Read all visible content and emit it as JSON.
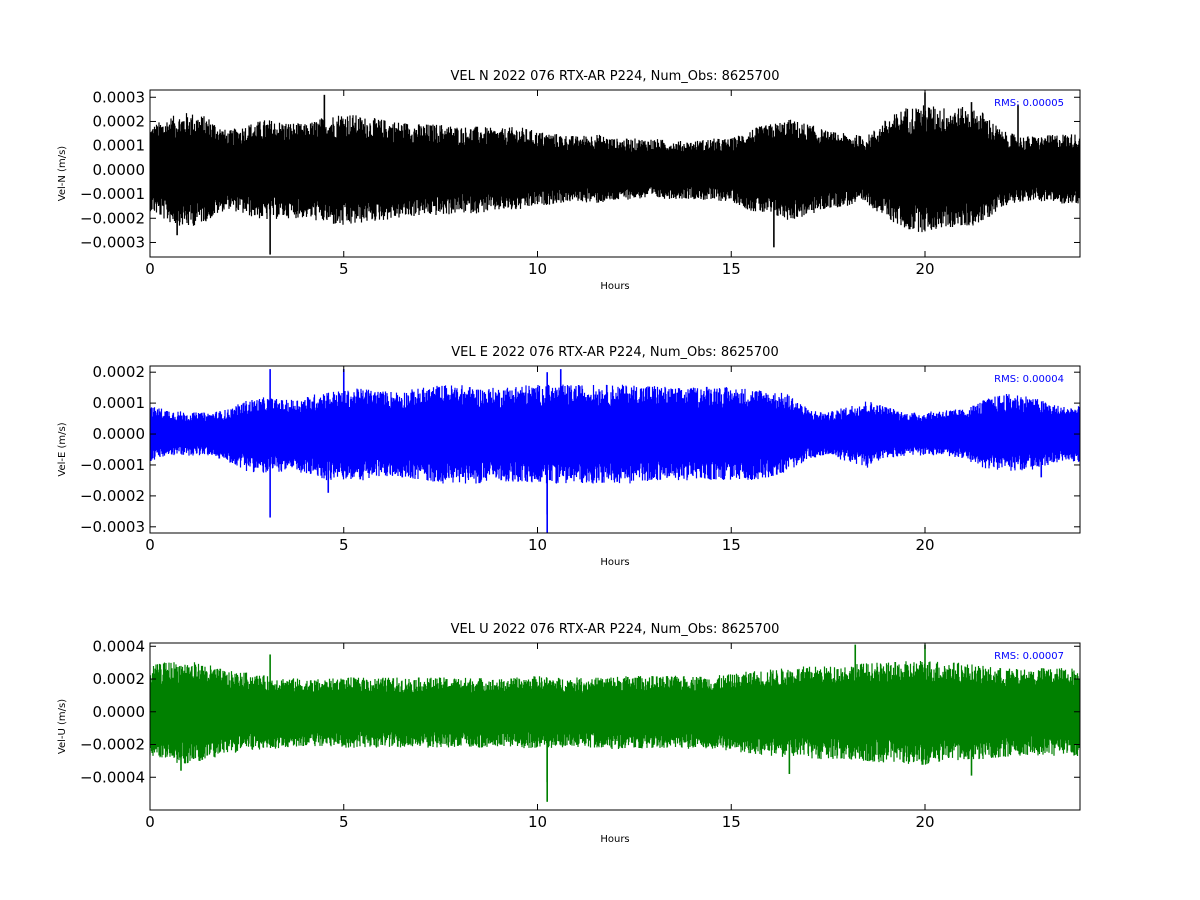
{
  "chart_data": [
    {
      "type": "line",
      "title": "VEL N 2022 076 RTX-AR  P224, Num_Obs: 8625700",
      "xlabel": "Hours",
      "ylabel": "Vel-N (m/s)",
      "xlim": [
        0,
        24
      ],
      "ylim": [
        -0.00036,
        0.00033
      ],
      "x_ticks": [
        0,
        5,
        10,
        15,
        20
      ],
      "x_tick_labels": [
        "0",
        "5",
        "10",
        "15",
        "20"
      ],
      "y_ticks": [
        -0.0003,
        -0.0002,
        -0.0001,
        0.0,
        0.0001,
        0.0002,
        0.0003
      ],
      "y_tick_labels": [
        "−0.0003",
        "−0.0002",
        "−0.0001",
        "0.0000",
        "0.0001",
        "0.0002",
        "0.0003"
      ],
      "annotation": "RMS:  0.00005",
      "annotation_color": "#0000ff",
      "series": [
        {
          "color": "#000000",
          "x": [
            0,
            0.5,
            1,
            1.5,
            2,
            2.5,
            3,
            3.5,
            4,
            4.5,
            5,
            5.5,
            6,
            6.5,
            7,
            7.5,
            8,
            8.5,
            9,
            9.5,
            10,
            10.5,
            11,
            11.5,
            12,
            12.5,
            13,
            13.5,
            14,
            14.5,
            15,
            15.5,
            16,
            16.5,
            17,
            17.5,
            18,
            18.5,
            19,
            19.5,
            20,
            20.5,
            21,
            21.5,
            22,
            22.5,
            23,
            23.5,
            24
          ],
          "upper": [
            0.00018,
            0.00022,
            0.00024,
            0.00022,
            0.00016,
            0.00019,
            0.00021,
            0.0002,
            0.00019,
            0.00022,
            0.00024,
            0.00022,
            0.00021,
            0.0002,
            0.00019,
            0.00019,
            0.00018,
            0.00018,
            0.00017,
            0.00018,
            0.00016,
            0.00015,
            0.00014,
            0.00015,
            0.00013,
            0.00013,
            0.00013,
            0.00012,
            0.00012,
            0.00013,
            0.00013,
            0.00017,
            0.00019,
            0.00021,
            0.00019,
            0.00016,
            0.00015,
            0.00014,
            0.00021,
            0.00026,
            0.00027,
            0.00026,
            0.00026,
            0.00024,
            0.00016,
            0.00014,
            0.00014,
            0.00015,
            0.00015
          ],
          "lower": [
            -0.00017,
            -0.00022,
            -0.00024,
            -0.00021,
            -0.00016,
            -0.00019,
            -0.00021,
            -0.0002,
            -0.0002,
            -0.00022,
            -0.00024,
            -0.00022,
            -0.00021,
            -0.0002,
            -0.00019,
            -0.00019,
            -0.00018,
            -0.00018,
            -0.00017,
            -0.00017,
            -0.00015,
            -0.00014,
            -0.00013,
            -0.00014,
            -0.00013,
            -0.00012,
            -0.00012,
            -0.00012,
            -0.00012,
            -0.00013,
            -0.00013,
            -0.00017,
            -0.00019,
            -0.00021,
            -0.00019,
            -0.00016,
            -0.00015,
            -0.00014,
            -0.0002,
            -0.00025,
            -0.00026,
            -0.00024,
            -0.00024,
            -0.00022,
            -0.00015,
            -0.00013,
            -0.00013,
            -0.00014,
            -0.00014
          ],
          "spikes": [
            [
              4.5,
              0.00031
            ],
            [
              3.1,
              -0.00035
            ],
            [
              16.1,
              -0.00032
            ],
            [
              20.0,
              0.00032
            ],
            [
              21.2,
              0.00028
            ],
            [
              22.4,
              0.00027
            ],
            [
              0.7,
              -0.00027
            ]
          ]
        }
      ]
    },
    {
      "type": "line",
      "title": "VEL E 2022 076 RTX-AR  P224, Num_Obs: 8625700",
      "xlabel": "Hours",
      "ylabel": "Vel-E (m/s)",
      "xlim": [
        0,
        24
      ],
      "ylim": [
        -0.00032,
        0.00022
      ],
      "x_ticks": [
        0,
        5,
        10,
        15,
        20
      ],
      "x_tick_labels": [
        "0",
        "5",
        "10",
        "15",
        "20"
      ],
      "y_ticks": [
        -0.0003,
        -0.0002,
        -0.0001,
        0.0,
        0.0001,
        0.0002
      ],
      "y_tick_labels": [
        "−0.0003",
        "−0.0002",
        "−0.0001",
        "0.0000",
        "0.0001",
        "0.0002"
      ],
      "annotation": "RMS:  0.00004",
      "annotation_color": "#0000ff",
      "series": [
        {
          "color": "#0000ff",
          "x": [
            0,
            0.5,
            1,
            1.5,
            2,
            2.5,
            3,
            3.5,
            4,
            4.5,
            5,
            5.5,
            6,
            6.5,
            7,
            7.5,
            8,
            8.5,
            9,
            9.5,
            10,
            10.5,
            11,
            11.5,
            12,
            12.5,
            13,
            13.5,
            14,
            14.5,
            15,
            15.5,
            16,
            16.5,
            17,
            17.5,
            18,
            18.5,
            19,
            19.5,
            20,
            20.5,
            21,
            21.5,
            22,
            22.5,
            23,
            23.5,
            24
          ],
          "upper": [
            9e-05,
            8e-05,
            7e-05,
            7e-05,
            8e-05,
            0.00011,
            0.00012,
            0.00011,
            0.00012,
            0.00014,
            0.00014,
            0.00015,
            0.00014,
            0.00014,
            0.00015,
            0.00016,
            0.00016,
            0.00015,
            0.00015,
            0.00016,
            0.00016,
            0.00016,
            0.00016,
            0.00016,
            0.00016,
            0.00016,
            0.00016,
            0.00015,
            0.00015,
            0.00016,
            0.00015,
            0.00015,
            0.00014,
            0.00013,
            8e-05,
            7e-05,
            9e-05,
            0.00011,
            9e-05,
            7e-05,
            7e-05,
            8e-05,
            8e-05,
            0.00011,
            0.00013,
            0.00013,
            0.00011,
            9e-05,
            9e-05
          ],
          "lower": [
            -9e-05,
            -7e-05,
            -7e-05,
            -7e-05,
            -9e-05,
            -0.00012,
            -0.00013,
            -0.00012,
            -0.00013,
            -0.00015,
            -0.00015,
            -0.00015,
            -0.00014,
            -0.00014,
            -0.00015,
            -0.00016,
            -0.00016,
            -0.00016,
            -0.00015,
            -0.00016,
            -0.00016,
            -0.00016,
            -0.00016,
            -0.00016,
            -0.00016,
            -0.00016,
            -0.00015,
            -0.00015,
            -0.00015,
            -0.00015,
            -0.00015,
            -0.00015,
            -0.00014,
            -0.00012,
            -8e-05,
            -7e-05,
            -9e-05,
            -0.00011,
            -8e-05,
            -7e-05,
            -7e-05,
            -7e-05,
            -8e-05,
            -0.00011,
            -0.00012,
            -0.00012,
            -0.00011,
            -9e-05,
            -9e-05
          ],
          "spikes": [
            [
              3.1,
              -0.00027
            ],
            [
              3.1,
              0.00021
            ],
            [
              10.25,
              -0.00032
            ],
            [
              10.25,
              -0.00026
            ],
            [
              5.0,
              0.00021
            ],
            [
              10.6,
              0.00021
            ],
            [
              10.25,
              0.0002
            ],
            [
              4.6,
              -0.00019
            ],
            [
              23.0,
              -0.00014
            ]
          ]
        }
      ]
    },
    {
      "type": "line",
      "title": "VEL U 2022 076 RTX-AR  P224, Num_Obs: 8625700",
      "xlabel": "Hours",
      "ylabel": "Vel-U (m/s)",
      "xlim": [
        0,
        24
      ],
      "ylim": [
        -0.0006,
        0.00042
      ],
      "x_ticks": [
        0,
        5,
        10,
        15,
        20
      ],
      "x_tick_labels": [
        "0",
        "5",
        "10",
        "15",
        "20"
      ],
      "y_ticks": [
        -0.0004,
        -0.0002,
        0.0,
        0.0002,
        0.0004
      ],
      "y_tick_labels": [
        "−0.0004",
        "−0.0002",
        "0.0000",
        "0.0002",
        "0.0004"
      ],
      "annotation": "RMS:  0.00007",
      "annotation_color": "#0000ff",
      "series": [
        {
          "color": "#008000",
          "x": [
            0,
            0.5,
            1,
            1.5,
            2,
            2.5,
            3,
            3.5,
            4,
            4.5,
            5,
            5.5,
            6,
            6.5,
            7,
            7.5,
            8,
            8.5,
            9,
            9.5,
            10,
            10.5,
            11,
            11.5,
            12,
            12.5,
            13,
            13.5,
            14,
            14.5,
            15,
            15.5,
            16,
            16.5,
            17,
            17.5,
            18,
            18.5,
            19,
            19.5,
            20,
            20.5,
            21,
            21.5,
            22,
            22.5,
            23,
            23.5,
            24
          ],
          "upper": [
            0.00028,
            0.00031,
            0.00031,
            0.00029,
            0.00025,
            0.00024,
            0.00022,
            0.00021,
            0.0002,
            0.0002,
            0.00021,
            0.00021,
            0.00021,
            0.00021,
            0.00021,
            0.00021,
            0.00021,
            0.00021,
            0.0002,
            0.00021,
            0.00022,
            0.00021,
            0.00021,
            0.00021,
            0.00022,
            0.00022,
            0.00022,
            0.00022,
            0.00022,
            0.00022,
            0.00023,
            0.00025,
            0.00026,
            0.00027,
            0.00028,
            0.00028,
            0.00029,
            0.0003,
            0.0003,
            0.00031,
            0.00032,
            0.00031,
            0.0003,
            0.00028,
            0.00027,
            0.00026,
            0.00027,
            0.00027,
            0.00027
          ],
          "lower": [
            -0.00027,
            -0.00031,
            -0.00032,
            -0.00029,
            -0.00026,
            -0.00024,
            -0.00023,
            -0.00022,
            -0.00021,
            -0.00021,
            -0.00022,
            -0.00022,
            -0.00022,
            -0.00022,
            -0.00022,
            -0.00022,
            -0.00022,
            -0.00022,
            -0.00021,
            -0.00022,
            -0.00023,
            -0.00022,
            -0.00022,
            -0.00022,
            -0.00023,
            -0.00023,
            -0.00023,
            -0.00023,
            -0.00023,
            -0.00023,
            -0.00024,
            -0.00026,
            -0.00027,
            -0.00028,
            -0.00029,
            -0.00029,
            -0.0003,
            -0.00031,
            -0.00031,
            -0.00032,
            -0.00033,
            -0.00031,
            -0.0003,
            -0.00029,
            -0.00028,
            -0.00027,
            -0.00027,
            -0.00027,
            -0.00028
          ],
          "spikes": [
            [
              10.25,
              -0.00055
            ],
            [
              10.25,
              -0.00043
            ],
            [
              3.1,
              0.00035
            ],
            [
              18.2,
              0.00041
            ],
            [
              20.0,
              0.00041
            ],
            [
              16.5,
              -0.00038
            ],
            [
              21.2,
              -0.00039
            ],
            [
              0.8,
              -0.00036
            ]
          ]
        }
      ]
    }
  ]
}
